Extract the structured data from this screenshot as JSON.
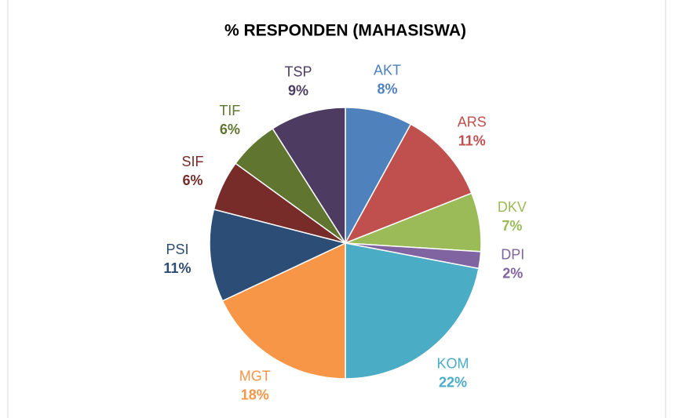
{
  "chart_data": {
    "type": "pie",
    "title": "% RESPONDEN (MAHASISWA)",
    "categories": [
      "AKT",
      "ARS",
      "DKV",
      "DPI",
      "KOM",
      "MGT",
      "PSI",
      "SIF",
      "TIF",
      "TSP"
    ],
    "values": [
      8,
      11,
      7,
      2,
      22,
      18,
      11,
      6,
      6,
      9
    ],
    "value_labels": [
      "8%",
      "11%",
      "7%",
      "2%",
      "22%",
      "18%",
      "11%",
      "6%",
      "6%",
      "9%"
    ],
    "colors": [
      "#4f81bd",
      "#c0504d",
      "#9bbb59",
      "#8064a2",
      "#4bacc6",
      "#f79646",
      "#2c4d75",
      "#772c2a",
      "#5f7530",
      "#4d3b62"
    ]
  }
}
